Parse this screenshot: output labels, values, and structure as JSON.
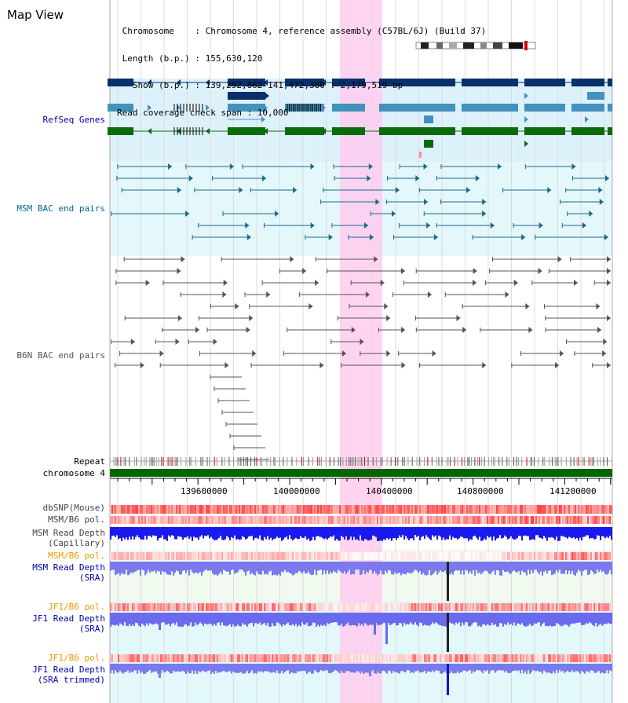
{
  "header": {
    "title": "Map View",
    "info_lines": [
      " Chromosome    : Chromosome 4, reference assembly (C57BL/6J) (Build 37)",
      " Length (b.p.) : 155,630,120",
      "   Show (b.p.) : 139,292,862-141,472,380 : 2,179,519 bp",
      "Read coverage check span : 10,000"
    ]
  },
  "tracks": {
    "refseq": {
      "label": "RefSeq Genes",
      "color": "#0000aa"
    },
    "msm_bac": {
      "label": "MSM BAC end pairs",
      "color": "#006699"
    },
    "b6n_bac": {
      "label": "B6N BAC end pairs",
      "color": "#555555"
    },
    "repeat": {
      "label": "Repeat"
    },
    "chromosome": {
      "label": "chromosome 4",
      "color": "#006600"
    },
    "dbsnp": {
      "label": "dbSNP(Mouse)"
    },
    "msm_b6_pol": {
      "label": "MSM/B6 pol."
    },
    "msm_depth_cap": {
      "label_1": "MSM Read Depth",
      "label_2": "(Capillary)"
    },
    "msm_b6_pol2": {
      "label": "MSM/B6 pol.",
      "color": "#ee9900"
    },
    "msm_depth_sra": {
      "label_1": "MSM Read Depth",
      "label_2": "(SRA)",
      "color": "#0000aa"
    },
    "jf1_pol": {
      "label": "JF1/B6 pol.",
      "color": "#ee9900"
    },
    "jf1_depth_sra": {
      "label_1": "JF1 Read Depth",
      "label_2": "(SRA)",
      "color": "#0000aa"
    },
    "jf1_pol2": {
      "label": "JF1/B6 pol.",
      "color": "#ee9900"
    },
    "jf1_depth_trim": {
      "label_1": "JF1 Read Depth",
      "label_2": "(SRA trimmed)",
      "color": "#0000aa"
    }
  },
  "axis": {
    "ticks": [
      "139600000",
      "140000000",
      "140400000",
      "140800000",
      "141200000"
    ]
  },
  "colors": {
    "highlight": "#ffccee",
    "refseq_bg": "#ddf1fb",
    "msm_bg": "#e4f7fb",
    "green_bg": "#f0faef",
    "cyan_bg": "#e2f8fb",
    "gene_dark": "#08306b",
    "gene_light": "#4392bd",
    "gene_green": "#0a6b0a"
  }
}
